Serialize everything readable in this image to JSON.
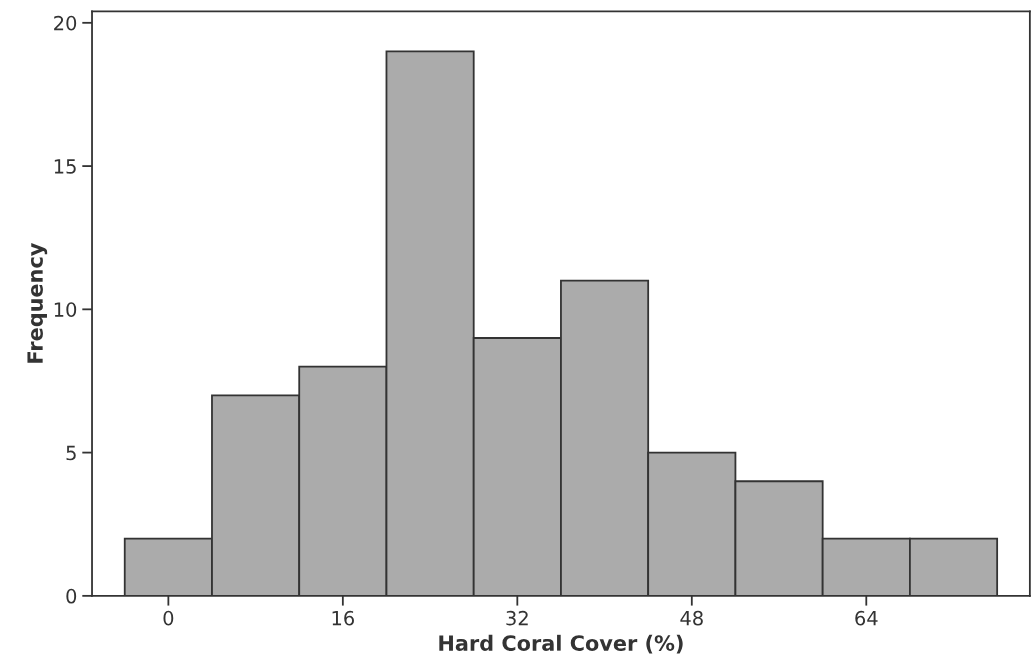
{
  "chart_data": {
    "type": "histogram",
    "xlabel": "Hard Coral Cover (%)",
    "ylabel": "Frequency",
    "bins": [
      -4,
      4,
      12,
      20,
      28,
      36,
      44,
      52,
      60,
      68,
      76
    ],
    "values": [
      2,
      7,
      8,
      19,
      9,
      11,
      5,
      4,
      2,
      2
    ],
    "color": "#ababab",
    "xlim": [
      -7,
      79
    ],
    "xticks": [
      0,
      16,
      32,
      48,
      64
    ],
    "ylim": [
      0,
      20.4
    ],
    "yticks": [
      0,
      5,
      10,
      15,
      20
    ],
    "grid": false
  }
}
